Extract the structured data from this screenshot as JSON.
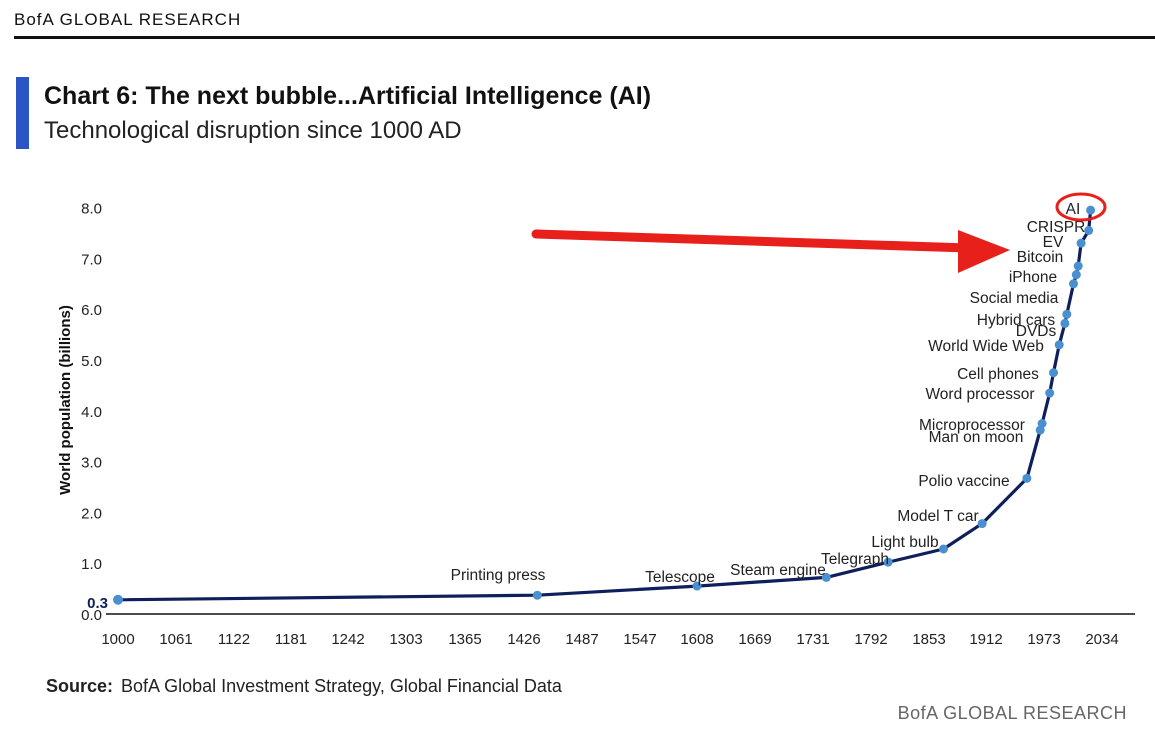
{
  "header": {
    "brand": "BofA GLOBAL RESEARCH"
  },
  "chart_data": {
    "type": "line",
    "title": "Chart 6: The next bubble...Artificial Intelligence (AI)",
    "subtitle": "Technological disruption since 1000 AD",
    "xlabel": "",
    "ylabel": "World population (billions)",
    "xlim": [
      1000,
      2080
    ],
    "ylim": [
      0,
      8.2
    ],
    "x_ticks": [
      "1000",
      "1061",
      "1122",
      "1181",
      "1242",
      "1303",
      "1365",
      "1426",
      "1487",
      "1547",
      "1608",
      "1669",
      "1731",
      "1792",
      "1853",
      "1912",
      "1973",
      "2034"
    ],
    "y_ticks": [
      "0.0",
      "1.0",
      "2.0",
      "3.0",
      "4.0",
      "5.0",
      "6.0",
      "7.0",
      "8.0"
    ],
    "start_annotation": "0.3",
    "series": [
      {
        "name": "World population",
        "x": [
          1000,
          1440,
          1608,
          1745,
          1810,
          1868,
          1908,
          1955,
          1969,
          1971,
          1979,
          1983,
          1989,
          1995,
          1997,
          2004,
          2007,
          2009,
          2012,
          2020,
          2022
        ],
        "values": [
          0.28,
          0.37,
          0.55,
          0.72,
          1.02,
          1.28,
          1.78,
          2.67,
          3.62,
          3.75,
          4.35,
          4.75,
          5.3,
          5.72,
          5.9,
          6.5,
          6.68,
          6.85,
          7.3,
          7.55,
          7.95
        ]
      }
    ],
    "labeled_points": [
      {
        "label": "Printing press",
        "x": 1440,
        "y": 0.37
      },
      {
        "label": "Telescope",
        "x": 1608,
        "y": 0.55
      },
      {
        "label": "Steam engine",
        "x": 1745,
        "y": 0.72
      },
      {
        "label": "Telegraph",
        "x": 1810,
        "y": 1.02
      },
      {
        "label": "Light bulb",
        "x": 1868,
        "y": 1.28
      },
      {
        "label": "Model T car",
        "x": 1908,
        "y": 1.78
      },
      {
        "label": "Polio vaccine",
        "x": 1955,
        "y": 2.67
      },
      {
        "label": "Man on moon",
        "x": 1969,
        "y": 3.62
      },
      {
        "label": "Microprocessor",
        "x": 1971,
        "y": 3.75
      },
      {
        "label": "Word processor",
        "x": 1979,
        "y": 4.35
      },
      {
        "label": "Cell phones",
        "x": 1983,
        "y": 4.75
      },
      {
        "label": "World Wide Web",
        "x": 1989,
        "y": 5.3
      },
      {
        "label": "DVDs",
        "x": 1995,
        "y": 5.72
      },
      {
        "label": "Hybrid cars",
        "x": 1997,
        "y": 5.9
      },
      {
        "label": "Social media",
        "x": 2004,
        "y": 6.5
      },
      {
        "label": "iPhone",
        "x": 2007,
        "y": 6.68
      },
      {
        "label": "Bitcoin",
        "x": 2009,
        "y": 6.85
      },
      {
        "label": "EV",
        "x": 2012,
        "y": 7.3
      },
      {
        "label": "CRISPR",
        "x": 2020,
        "y": 7.55
      },
      {
        "label": "AI",
        "x": 2022,
        "y": 7.95
      }
    ],
    "highlight": {
      "label": "AI",
      "annotation": "red arrow and red circle"
    }
  },
  "colors": {
    "line": "#0e1f5c",
    "marker": "#4a90d0",
    "arrow": "#e8201c",
    "accent": "#2b55c4"
  },
  "footer": {
    "source_label": "Source:",
    "source_text": "BofA Global Investment Strategy, Global Financial Data",
    "brand": "BofA GLOBAL RESEARCH"
  }
}
